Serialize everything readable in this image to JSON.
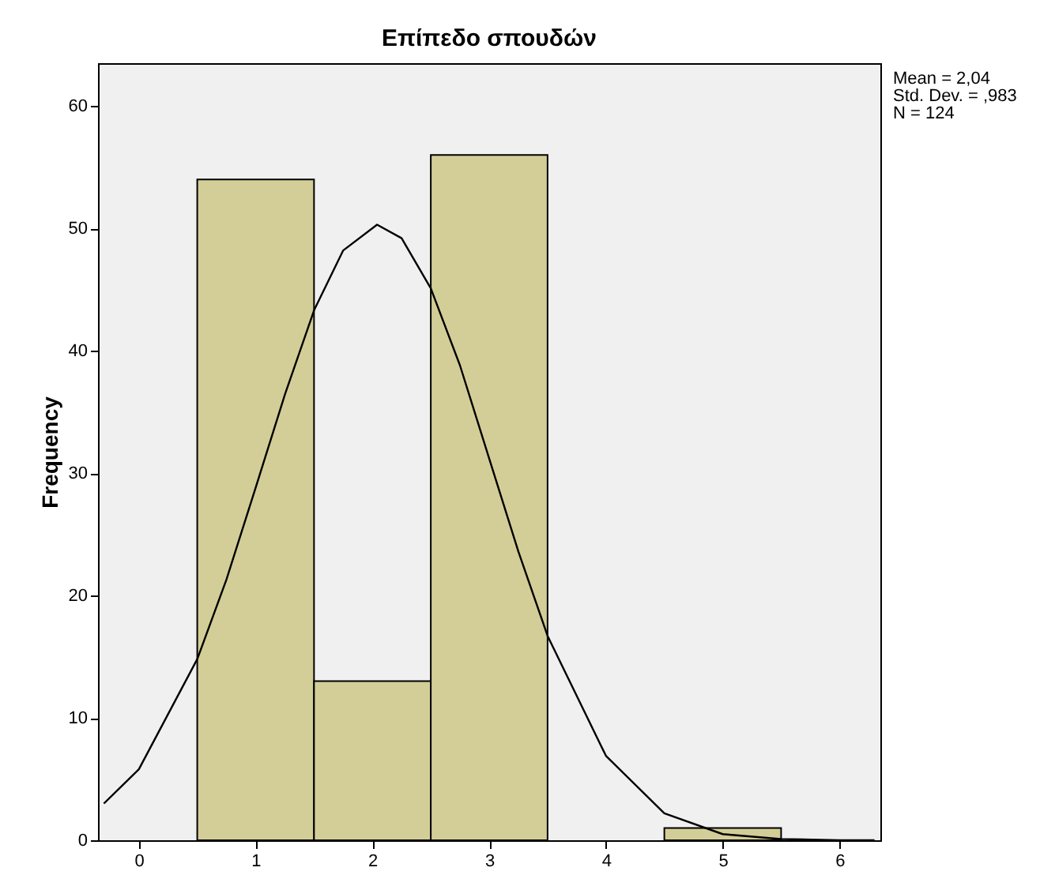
{
  "chart_data": {
    "type": "histogram",
    "title": "Επίπεδο σπουδών",
    "ylabel": "Frequency",
    "annotations": [
      "Mean = 2,04",
      "Std. Dev. = ,983",
      "N = 124"
    ],
    "bins": [
      0.5,
      1.5,
      2.5,
      3.5,
      4.5,
      5.5
    ],
    "series": [
      {
        "type": "histogram",
        "color": "#d3ce97",
        "values": [
          54,
          13,
          56,
          0,
          1
        ]
      },
      {
        "type": "line",
        "color": "#000000",
        "x": [
          -0.3,
          0,
          0.5,
          0.75,
          1,
          1.25,
          1.5,
          1.75,
          2.04,
          2.25,
          2.5,
          2.75,
          3,
          3.25,
          3.5,
          4,
          4.5,
          5,
          5.5,
          6,
          6.3
        ],
        "values": [
          3.0,
          5.8,
          14.8,
          21.3,
          28.8,
          36.4,
          43.3,
          48.2,
          50.3,
          49.2,
          45.1,
          38.8,
          31.2,
          23.6,
          16.7,
          6.9,
          2.2,
          0.5,
          0.1,
          0.0,
          0.0
        ]
      }
    ],
    "xlim": [
      -0.35,
      6.35
    ],
    "xticks": [
      0,
      1,
      2,
      3,
      4,
      5,
      6
    ],
    "ylim": [
      0,
      63.5
    ],
    "yticks": [
      0,
      10,
      20,
      30,
      40,
      50,
      60
    ],
    "marker": "none",
    "line_style": "solid"
  }
}
